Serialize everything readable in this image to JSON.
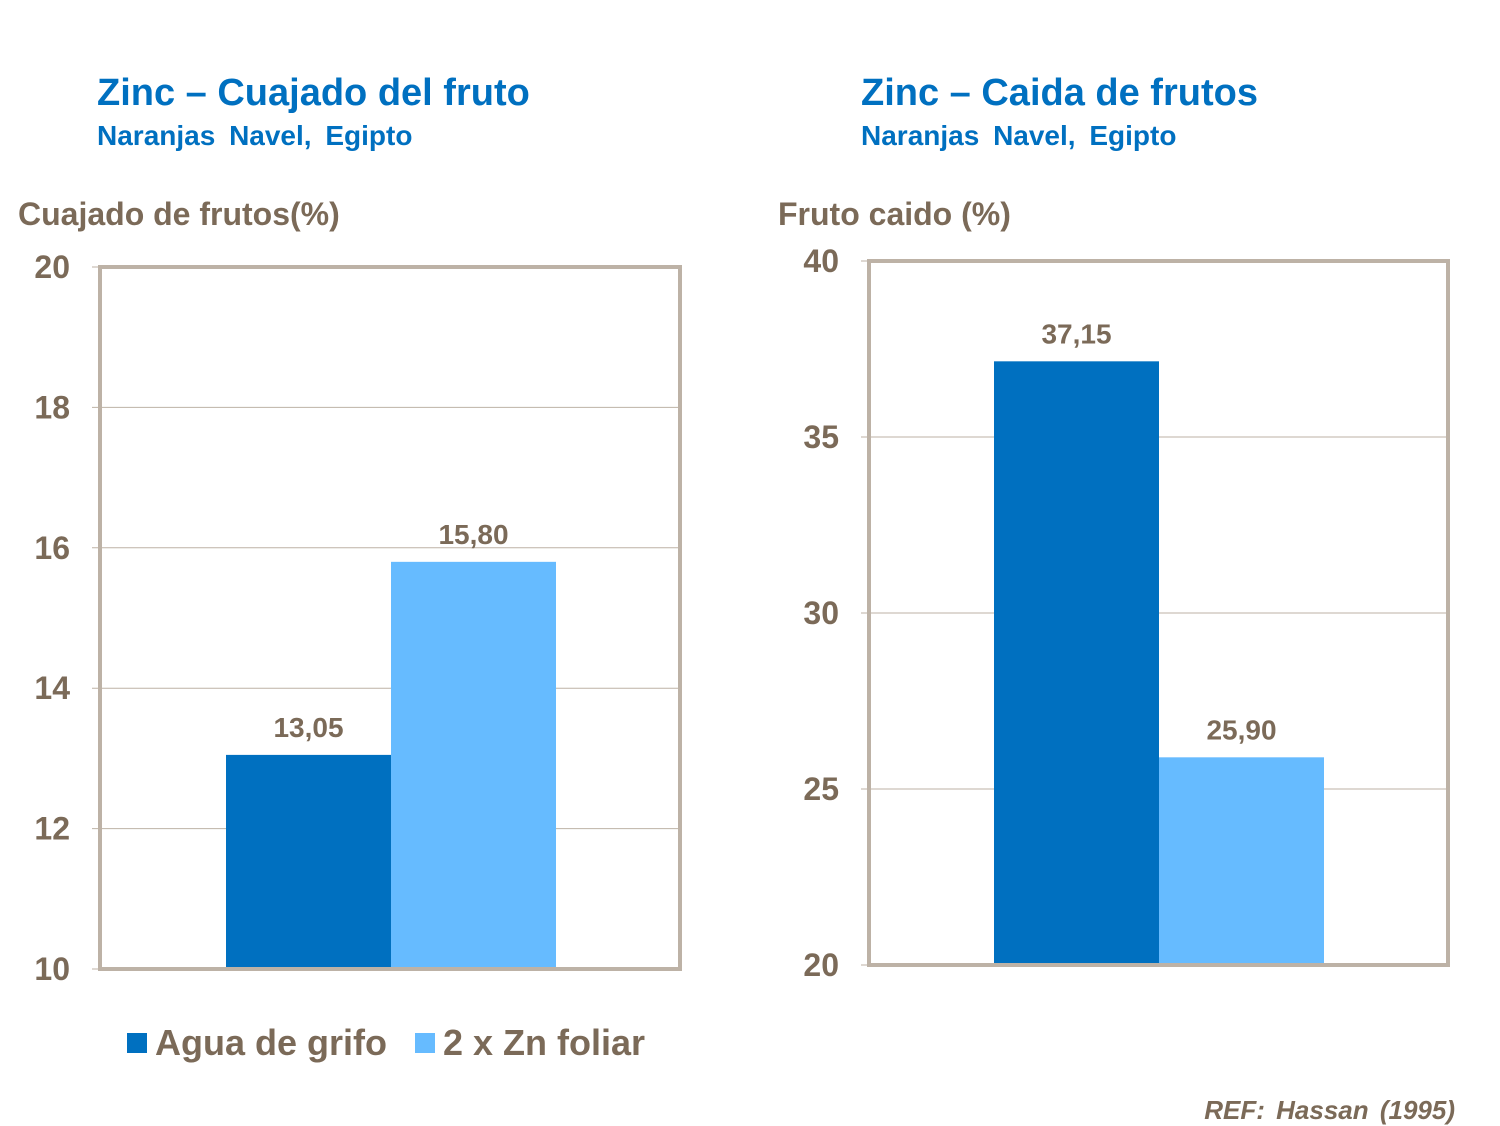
{
  "colors": {
    "series1": "#0070C0",
    "series2": "#66BBFF",
    "text": "#7B6A58",
    "axis": "#BDB2A6",
    "title": "#0070C0"
  },
  "legend": [
    "Agua de grifo",
    "2 x Zn foliar"
  ],
  "reference": "REF: Hassan (1995)",
  "chart_data": [
    {
      "type": "bar",
      "title": "Zinc – Cuajado del fruto",
      "subtitle": "Naranjas Navel, Egipto",
      "ylabel": "Cuajado de frutos(%)",
      "ylim": [
        10,
        20
      ],
      "yticks": [
        "10",
        "12",
        "14",
        "16",
        "18",
        "20"
      ],
      "grid": true,
      "series": [
        {
          "name": "Agua de grifo",
          "values": [
            13.05
          ],
          "label": "13,05"
        },
        {
          "name": "2 x Zn foliar",
          "values": [
            15.8
          ],
          "label": "15,80"
        }
      ]
    },
    {
      "type": "bar",
      "title": "Zinc – Caida de frutos",
      "subtitle": "Naranjas Navel, Egipto",
      "ylabel": "Fruto caido (%)",
      "ylim": [
        20,
        40
      ],
      "yticks": [
        "20",
        "25",
        "30",
        "35",
        "40"
      ],
      "grid": true,
      "series": [
        {
          "name": "Agua de grifo",
          "values": [
            37.15
          ],
          "label": "37,15"
        },
        {
          "name": "2 x Zn foliar",
          "values": [
            25.9
          ],
          "label": "25,90"
        }
      ]
    }
  ]
}
